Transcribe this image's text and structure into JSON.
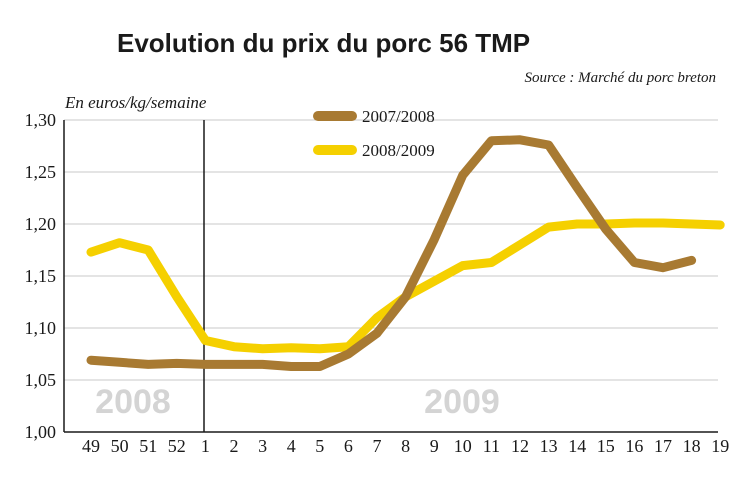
{
  "chart_data": {
    "type": "line",
    "title": "Evolution du prix du porc 56 TMP",
    "subtitle": "Source : Marché du porc breton",
    "ylabel": "En euros/kg/semaine",
    "ylim": [
      1.0,
      1.3
    ],
    "yticks": [
      "1,00",
      "1,05",
      "1,10",
      "1,15",
      "1,20",
      "1,25",
      "1,30"
    ],
    "categories": [
      "49",
      "50",
      "51",
      "52",
      "1",
      "2",
      "3",
      "4",
      "5",
      "6",
      "7",
      "8",
      "9",
      "10",
      "11",
      "12",
      "13",
      "14",
      "15",
      "16",
      "17",
      "18",
      "19"
    ],
    "year_labels": [
      "2008",
      "2009"
    ],
    "legend_position": "top-center",
    "grid": true,
    "series": [
      {
        "name": "2007/2008",
        "color": "#a87a32",
        "values": [
          1.069,
          1.067,
          1.065,
          1.066,
          1.065,
          1.065,
          1.065,
          1.063,
          1.063,
          1.075,
          1.095,
          1.13,
          1.185,
          1.247,
          1.28,
          1.281,
          1.276,
          1.235,
          1.195,
          1.163,
          1.158,
          1.165,
          null
        ]
      },
      {
        "name": "2008/2009",
        "color": "#f5d000",
        "values": [
          1.173,
          1.182,
          1.175,
          1.13,
          1.088,
          1.082,
          1.08,
          1.081,
          1.08,
          1.082,
          1.11,
          1.13,
          1.145,
          1.16,
          1.163,
          1.18,
          1.197,
          1.2,
          1.2,
          1.201,
          1.201,
          1.2,
          1.199
        ]
      }
    ]
  }
}
